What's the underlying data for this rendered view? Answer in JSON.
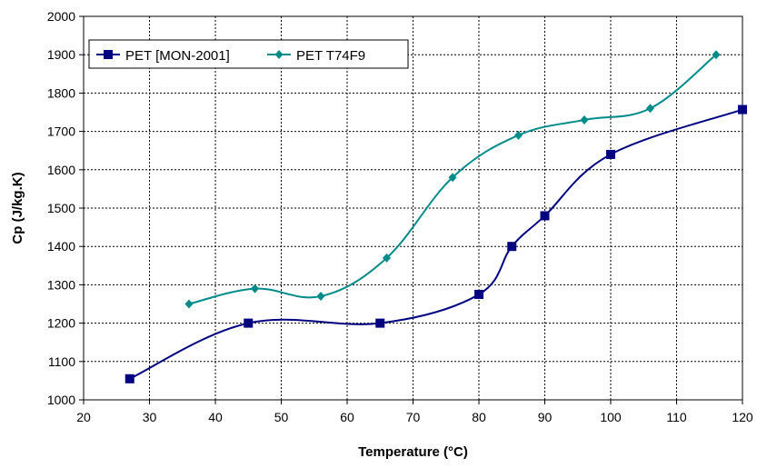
{
  "chart_data": {
    "type": "line",
    "xlabel": "Temperature (°C)",
    "ylabel": "Cp (J/kg.K)",
    "xlim": [
      20,
      120
    ],
    "ylim": [
      1000,
      2000
    ],
    "xticks": [
      20,
      30,
      40,
      50,
      60,
      70,
      80,
      90,
      100,
      110,
      120
    ],
    "yticks": [
      1000,
      1100,
      1200,
      1300,
      1400,
      1500,
      1600,
      1700,
      1800,
      1900,
      2000
    ],
    "grid": "dotted major gridlines",
    "smooth": true,
    "legend_position": "top-left",
    "series": [
      {
        "name": "PET [MON-2001]",
        "color": "#000080",
        "marker": "square",
        "x": [
          27,
          45,
          65,
          80,
          85,
          90,
          100,
          120
        ],
        "y": [
          1055,
          1200,
          1200,
          1275,
          1400,
          1480,
          1640,
          1757
        ]
      },
      {
        "name": "PET T74F9",
        "color": "#008B8B",
        "marker": "diamond",
        "x": [
          36,
          46,
          56,
          66,
          76,
          86,
          96,
          106,
          116
        ],
        "y": [
          1250,
          1290,
          1270,
          1370,
          1580,
          1690,
          1730,
          1760,
          1900
        ]
      }
    ]
  }
}
